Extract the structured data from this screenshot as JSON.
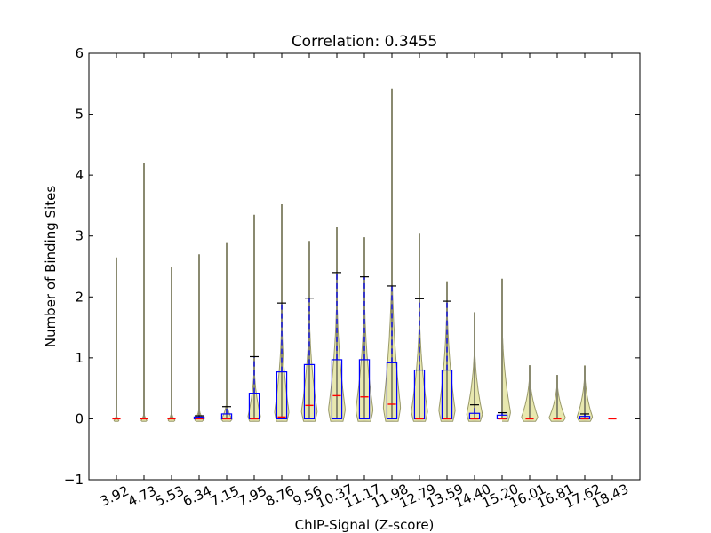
{
  "chart_data": {
    "type": "violin",
    "title": "Correlation: 0.3455",
    "xlabel": "ChIP-Signal (Z-score)",
    "ylabel": "Number of Binding Sites",
    "ylim": [
      -1,
      6
    ],
    "yticks": [
      -1,
      0,
      1,
      2,
      3,
      4,
      5,
      6
    ],
    "grid": false,
    "colors": {
      "violin_fill": "#e6e6a6",
      "violin_edge": "#9a9a6a",
      "box": "#0000ff",
      "median": "#ff0000",
      "whisker_cap": "#000000",
      "spine": "#000000"
    },
    "categories": [
      "3.92",
      "4.73",
      "5.53",
      "6.34",
      "7.15",
      "7.95",
      "8.76",
      "9.56",
      "10.37",
      "11.17",
      "11.98",
      "12.79",
      "13.59",
      "14.40",
      "15.20",
      "16.01",
      "16.81",
      "17.62",
      "18.43"
    ],
    "groups": [
      {
        "x": "3.92",
        "max": 2.65,
        "q1": 0,
        "median": 0,
        "q3": 0,
        "whisker": 0,
        "vwidth": 0.25,
        "vheight": 0.1
      },
      {
        "x": "4.73",
        "max": 4.2,
        "q1": 0,
        "median": 0,
        "q3": 0,
        "whisker": 0,
        "vwidth": 0.3,
        "vheight": 0.12
      },
      {
        "x": "5.53",
        "max": 2.5,
        "q1": 0,
        "median": 0,
        "q3": 0,
        "whisker": 0,
        "vwidth": 0.35,
        "vheight": 0.14
      },
      {
        "x": "6.34",
        "max": 2.7,
        "q1": 0,
        "median": 0,
        "q3": 0.03,
        "whisker": 0.05,
        "vwidth": 0.45,
        "vheight": 0.22
      },
      {
        "x": "7.15",
        "max": 2.9,
        "q1": 0,
        "median": 0,
        "q3": 0.08,
        "whisker": 0.2,
        "vwidth": 0.55,
        "vheight": 0.35
      },
      {
        "x": "7.95",
        "max": 3.35,
        "q1": 0,
        "median": 0,
        "q3": 0.42,
        "whisker": 1.02,
        "vwidth": 0.65,
        "vheight": 1.0
      },
      {
        "x": "8.76",
        "max": 3.52,
        "q1": 0,
        "median": 0.03,
        "q3": 0.77,
        "whisker": 1.9,
        "vwidth": 0.75,
        "vheight": 1.9
      },
      {
        "x": "9.56",
        "max": 2.92,
        "q1": 0,
        "median": 0.22,
        "q3": 0.89,
        "whisker": 1.98,
        "vwidth": 0.82,
        "vheight": 2.0
      },
      {
        "x": "10.37",
        "max": 3.15,
        "q1": 0,
        "median": 0.38,
        "q3": 0.97,
        "whisker": 2.4,
        "vwidth": 0.88,
        "vheight": 2.4
      },
      {
        "x": "11.17",
        "max": 2.98,
        "q1": 0,
        "median": 0.36,
        "q3": 0.97,
        "whisker": 2.33,
        "vwidth": 0.9,
        "vheight": 2.33
      },
      {
        "x": "11.98",
        "max": 5.42,
        "q1": 0,
        "median": 0.24,
        "q3": 0.92,
        "whisker": 2.18,
        "vwidth": 0.9,
        "vheight": 2.9
      },
      {
        "x": "12.79",
        "max": 3.05,
        "q1": 0,
        "median": 0,
        "q3": 0.8,
        "whisker": 1.97,
        "vwidth": 0.85,
        "vheight": 2.0
      },
      {
        "x": "13.59",
        "max": 2.25,
        "q1": 0,
        "median": 0,
        "q3": 0.8,
        "whisker": 1.93,
        "vwidth": 0.85,
        "vheight": 2.25
      },
      {
        "x": "14.40",
        "max": 1.75,
        "q1": 0,
        "median": 0,
        "q3": 0.09,
        "whisker": 0.23,
        "vwidth": 0.82,
        "vheight": 1.4
      },
      {
        "x": "15.20",
        "max": 2.3,
        "q1": 0,
        "median": 0,
        "q3": 0.06,
        "whisker": 0.1,
        "vwidth": 0.88,
        "vheight": 1.8
      },
      {
        "x": "16.01",
        "max": 0.88,
        "q1": 0,
        "median": 0,
        "q3": 0,
        "whisker": 0,
        "vwidth": 0.85,
        "vheight": 0.85
      },
      {
        "x": "16.81",
        "max": 0.72,
        "q1": 0,
        "median": 0,
        "q3": 0,
        "whisker": 0,
        "vwidth": 0.85,
        "vheight": 0.7
      },
      {
        "x": "17.62",
        "max": 0.87,
        "q1": 0,
        "median": 0,
        "q3": 0.04,
        "whisker": 0.08,
        "vwidth": 0.8,
        "vheight": 0.87
      },
      {
        "x": "18.43",
        "max": 0,
        "q1": 0,
        "median": 0,
        "q3": 0,
        "whisker": 0,
        "vwidth": 0.2,
        "vheight": 0.0
      }
    ]
  }
}
